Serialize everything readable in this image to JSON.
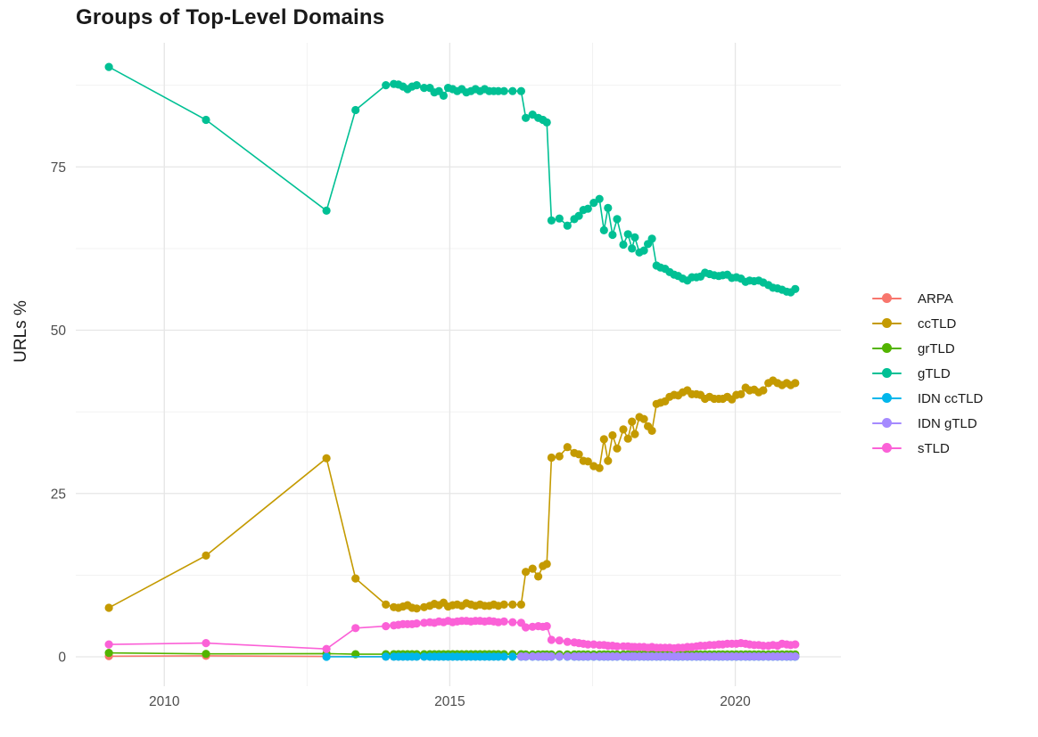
{
  "chart_data": {
    "type": "line",
    "title": "Groups of Top-Level Domains",
    "xlabel": "",
    "ylabel": "URLs %",
    "legend_position": "right",
    "x_axis": {
      "major_ticks": [
        2010,
        2015,
        2020
      ],
      "major_tick_labels": [
        "2010",
        "2015",
        "2020"
      ],
      "minor_ticks": [
        2012.5,
        2017.5
      ],
      "range": [
        2008.45,
        2021.85
      ]
    },
    "y_axis": {
      "major_ticks": [
        0,
        25,
        50,
        75
      ],
      "major_tick_labels": [
        "0",
        "25",
        "50",
        "75"
      ],
      "minor_ticks": [
        12.5,
        37.5,
        62.5,
        87.5
      ],
      "range": [
        -4.5,
        94
      ]
    },
    "grid_dates": [
      2013.88,
      2014.02,
      2014.1,
      2014.18,
      2014.26,
      2014.34,
      2014.42,
      2014.55,
      2014.65,
      2014.73,
      2014.81,
      2014.89,
      2014.97,
      2015.05,
      2015.13,
      2015.21,
      2015.29,
      2015.37,
      2015.45,
      2015.53,
      2015.61,
      2015.69,
      2015.77,
      2015.85,
      2015.95,
      2016.1,
      2016.25,
      2016.33,
      2016.45,
      2016.55,
      2016.63,
      2016.7,
      2016.78,
      2016.92,
      2017.06,
      2017.18,
      2017.26,
      2017.34,
      2017.42,
      2017.52,
      2017.62,
      2017.7,
      2017.77,
      2017.85,
      2017.93,
      2018.04,
      2018.12,
      2018.19,
      2018.24,
      2018.32,
      2018.4,
      2018.47,
      2018.54,
      2018.62,
      2018.69,
      2018.77,
      2018.85,
      2018.93,
      2019.0,
      2019.08,
      2019.16,
      2019.24,
      2019.32,
      2019.39,
      2019.47,
      2019.55,
      2019.63,
      2019.71,
      2019.78,
      2019.86,
      2019.94,
      2020.02,
      2020.1,
      2020.18,
      2020.25,
      2020.33,
      2020.41,
      2020.49,
      2020.58,
      2020.66,
      2020.74,
      2020.82,
      2020.9,
      2020.97,
      2021.05
    ],
    "series": [
      {
        "name": "ARPA",
        "color": "#F8766D",
        "pre_points": [
          [
            2009.03,
            0.1
          ],
          [
            2010.73,
            0.15
          ],
          [
            2012.84,
            0.06
          ]
        ],
        "grid_constant": 0.03
      },
      {
        "name": "ccTLD",
        "color": "#C49A00",
        "pre_points": [
          [
            2009.03,
            7.5
          ],
          [
            2010.73,
            15.5
          ],
          [
            2012.84,
            30.4
          ],
          [
            2013.35,
            12.0
          ]
        ],
        "grid_values": [
          8.0,
          7.6,
          7.5,
          7.7,
          7.9,
          7.5,
          7.4,
          7.6,
          7.8,
          8.1,
          7.9,
          8.3,
          7.7,
          7.9,
          8.0,
          7.8,
          8.2,
          8.0,
          7.8,
          8.0,
          7.8,
          7.8,
          8.0,
          7.8,
          8.0,
          8.0,
          8.0,
          13.0,
          13.5,
          12.3,
          13.9,
          14.2,
          30.5,
          30.7,
          32.1,
          31.2,
          31.0,
          30.0,
          29.9,
          29.2,
          28.9,
          33.3,
          30.0,
          33.9,
          31.9,
          34.8,
          33.4,
          36.0,
          34.1,
          36.7,
          36.4,
          35.3,
          34.6,
          38.7,
          38.9,
          39.1,
          39.8,
          40.1,
          40.0,
          40.5,
          40.8,
          40.2,
          40.2,
          40.1,
          39.5,
          39.8,
          39.5,
          39.5,
          39.5,
          39.8,
          39.4,
          40.1,
          40.2,
          41.2,
          40.8,
          40.9,
          40.5,
          40.8,
          41.9,
          42.3,
          41.9,
          41.6,
          41.9,
          41.6,
          41.9
        ]
      },
      {
        "name": "grTLD",
        "color": "#53B400",
        "pre_points": [
          [
            2009.03,
            0.6
          ],
          [
            2010.73,
            0.45
          ],
          [
            2012.84,
            0.5
          ],
          [
            2013.35,
            0.4
          ]
        ],
        "grid_values": [
          0.4,
          0.4,
          0.4,
          0.4,
          0.4,
          0.4,
          0.4,
          0.4,
          0.4,
          0.4,
          0.4,
          0.4,
          0.4,
          0.4,
          0.4,
          0.4,
          0.4,
          0.4,
          0.4,
          0.4,
          0.4,
          0.4,
          0.4,
          0.4,
          0.4,
          0.4,
          0.4,
          0.35,
          0.35,
          0.35,
          0.35,
          0.35,
          0.35,
          0.35,
          0.35,
          0.35,
          0.35,
          0.35,
          0.35,
          0.35,
          0.35,
          0.35,
          0.35,
          0.35,
          0.35,
          0.35,
          0.35,
          0.35,
          0.35,
          0.35,
          0.35,
          0.35,
          0.35,
          0.35,
          0.35,
          0.35,
          0.35,
          0.35,
          0.35,
          0.35,
          0.35,
          0.35,
          0.35,
          0.35,
          0.35,
          0.35,
          0.35,
          0.35,
          0.35,
          0.35,
          0.35,
          0.35,
          0.35,
          0.35,
          0.35,
          0.35,
          0.35,
          0.35,
          0.35,
          0.35,
          0.35,
          0.35,
          0.35,
          0.35,
          0.35
        ]
      },
      {
        "name": "gTLD",
        "color": "#00C094",
        "pre_points": [
          [
            2009.03,
            90.3
          ],
          [
            2010.73,
            82.2
          ],
          [
            2012.84,
            68.3
          ],
          [
            2013.35,
            83.7
          ]
        ],
        "grid_values": [
          87.5,
          87.7,
          87.6,
          87.3,
          86.9,
          87.3,
          87.5,
          87.1,
          87.1,
          86.4,
          86.6,
          85.9,
          87.1,
          86.9,
          86.6,
          86.9,
          86.4,
          86.6,
          86.9,
          86.6,
          86.9,
          86.6,
          86.6,
          86.6,
          86.6,
          86.6,
          86.6,
          82.5,
          83.0,
          82.5,
          82.2,
          81.8,
          66.8,
          67.1,
          66.0,
          67.0,
          67.5,
          68.4,
          68.6,
          69.5,
          70.1,
          65.3,
          68.7,
          64.6,
          67.0,
          63.1,
          64.7,
          62.5,
          64.2,
          61.9,
          62.2,
          63.2,
          64.0,
          59.9,
          59.6,
          59.4,
          58.9,
          58.5,
          58.3,
          57.9,
          57.6,
          58.1,
          58.1,
          58.2,
          58.8,
          58.6,
          58.4,
          58.3,
          58.4,
          58.5,
          58.0,
          58.1,
          57.9,
          57.4,
          57.6,
          57.5,
          57.6,
          57.3,
          56.9,
          56.5,
          56.4,
          56.2,
          55.9,
          55.8,
          56.3
        ]
      },
      {
        "name": "IDN ccTLD",
        "color": "#00B6EB",
        "pre_points": [
          [
            2012.84,
            0.0
          ]
        ],
        "grid_constant": 0.02
      },
      {
        "name": "IDN gTLD",
        "color": "#A58AFF",
        "pre_points": [],
        "grid_constant": 0.06,
        "grid_start": 2016.25
      },
      {
        "name": "sTLD",
        "color": "#FB61D7",
        "pre_points": [
          [
            2009.03,
            1.9
          ],
          [
            2010.73,
            2.1
          ],
          [
            2012.84,
            1.2
          ],
          [
            2013.35,
            4.4
          ]
        ],
        "grid_values": [
          4.7,
          4.8,
          4.9,
          5.0,
          5.0,
          5.0,
          5.1,
          5.2,
          5.3,
          5.2,
          5.4,
          5.3,
          5.5,
          5.3,
          5.4,
          5.5,
          5.5,
          5.4,
          5.5,
          5.5,
          5.4,
          5.5,
          5.4,
          5.3,
          5.4,
          5.3,
          5.2,
          4.5,
          4.6,
          4.7,
          4.6,
          4.7,
          2.6,
          2.5,
          2.3,
          2.2,
          2.1,
          2.0,
          1.9,
          1.9,
          1.8,
          1.8,
          1.7,
          1.7,
          1.6,
          1.6,
          1.6,
          1.5,
          1.5,
          1.5,
          1.5,
          1.4,
          1.5,
          1.4,
          1.4,
          1.4,
          1.4,
          1.3,
          1.4,
          1.4,
          1.5,
          1.5,
          1.6,
          1.7,
          1.7,
          1.8,
          1.8,
          1.9,
          1.9,
          2.0,
          2.0,
          2.0,
          2.1,
          2.0,
          1.9,
          1.8,
          1.8,
          1.7,
          1.7,
          1.8,
          1.7,
          2.0,
          1.9,
          1.8,
          1.9
        ]
      }
    ],
    "style": {
      "grid_major_color": "#e6e6e6",
      "grid_minor_color": "#f0f0f0",
      "tick_label_color": "#4d4d4d",
      "text_color": "#1a1a1a",
      "background": "#ffffff"
    }
  }
}
